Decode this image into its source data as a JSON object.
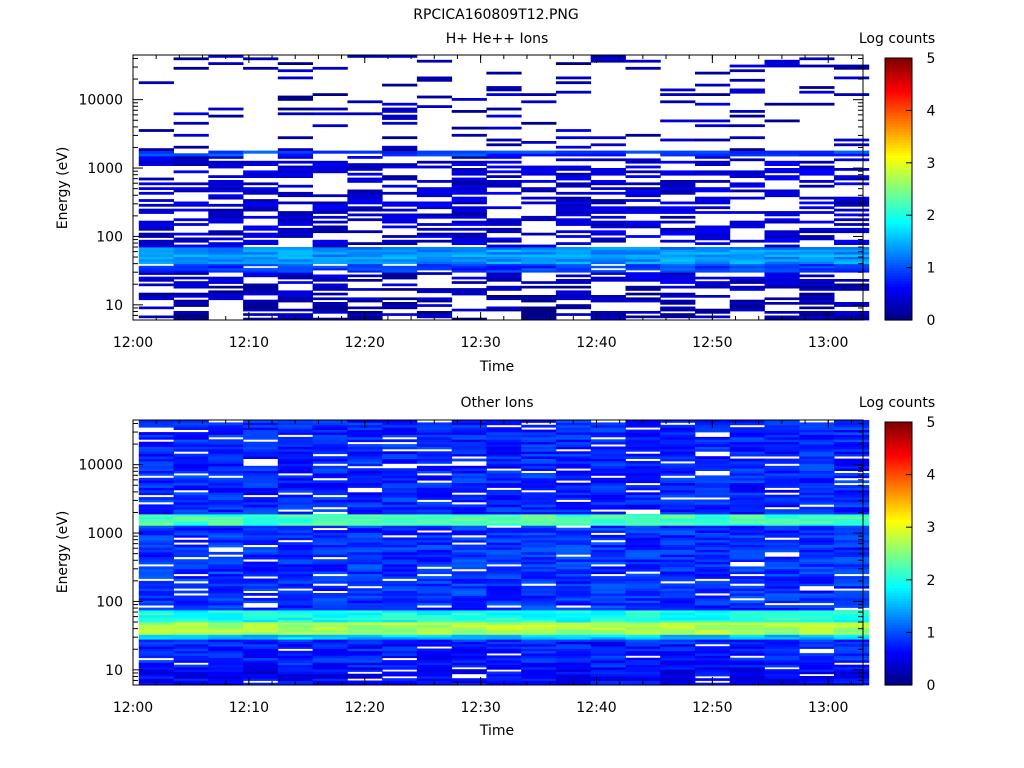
{
  "figure_title": "RPCICA160809T12.PNG",
  "chart_data": [
    {
      "type": "heatmap",
      "title": "H+ He++ Ions",
      "xlabel": "Time",
      "ylabel": "Energy (eV)",
      "x_ticks": [
        "12:00",
        "12:10",
        "12:20",
        "12:30",
        "12:40",
        "12:50",
        "13:00"
      ],
      "xlim": [
        "12:00",
        "13:03"
      ],
      "y_scale": "log",
      "ylim": [
        6,
        45000
      ],
      "y_ticks": [
        "10",
        "100",
        "1000",
        "10000"
      ],
      "colorbar": {
        "label": "Log counts",
        "range": [
          0,
          5
        ],
        "ticks": [
          "0",
          "1",
          "2",
          "3",
          "4",
          "5"
        ]
      },
      "time_bins": [
        "12:02",
        "12:05",
        "12:08",
        "12:11",
        "12:14",
        "12:17",
        "12:20",
        "12:23",
        "12:26",
        "12:29",
        "12:32",
        "12:35",
        "12:38",
        "12:41",
        "12:44",
        "12:47",
        "12:50",
        "12:53",
        "12:56",
        "12:59",
        "13:02"
      ],
      "bands": [
        {
          "energy_range": [
            6,
            11
          ],
          "log_counts": 0.2,
          "fill": 0.55
        },
        {
          "energy_range": [
            11,
            19
          ],
          "log_counts": 0.25,
          "fill": 0.5
        },
        {
          "energy_range": [
            19,
            30
          ],
          "log_counts": 0.35,
          "fill": 0.55
        },
        {
          "energy_range": [
            30,
            40
          ],
          "log_counts": 0.9,
          "fill": 0.9
        },
        {
          "energy_range": [
            40,
            70
          ],
          "log_counts": 1.35,
          "fill": 1.0
        },
        {
          "energy_range": [
            70,
            1500
          ],
          "log_counts": 0.4,
          "fill": 0.5
        },
        {
          "energy_range": [
            1500,
            1800
          ],
          "log_counts": 0.9,
          "fill": 0.9
        },
        {
          "energy_range": [
            1800,
            45000
          ],
          "log_counts": 0.25,
          "fill": 0.12
        }
      ]
    },
    {
      "type": "heatmap",
      "title": "Other Ions",
      "xlabel": "Time",
      "ylabel": "Energy (eV)",
      "x_ticks": [
        "12:00",
        "12:10",
        "12:20",
        "12:30",
        "12:40",
        "12:50",
        "13:00"
      ],
      "xlim": [
        "12:00",
        "13:03"
      ],
      "y_scale": "log",
      "ylim": [
        6,
        45000
      ],
      "y_ticks": [
        "10",
        "100",
        "1000",
        "10000"
      ],
      "colorbar": {
        "label": "Log counts",
        "range": [
          0,
          5
        ],
        "ticks": [
          "0",
          "1",
          "2",
          "3",
          "4",
          "5"
        ]
      },
      "time_bins": [
        "12:02",
        "12:05",
        "12:08",
        "12:11",
        "12:14",
        "12:17",
        "12:20",
        "12:23",
        "12:26",
        "12:29",
        "12:32",
        "12:35",
        "12:38",
        "12:41",
        "12:44",
        "12:47",
        "12:50",
        "12:53",
        "12:56",
        "12:59",
        "13:02"
      ],
      "bands": [
        {
          "energy_range": [
            6,
            11
          ],
          "log_counts": 0.6,
          "fill": 0.9
        },
        {
          "energy_range": [
            11,
            28
          ],
          "log_counts": 0.75,
          "fill": 0.95
        },
        {
          "energy_range": [
            28,
            33
          ],
          "log_counts": 1.6,
          "fill": 1.0
        },
        {
          "energy_range": [
            33,
            50
          ],
          "log_counts": 2.7,
          "fill": 1.0
        },
        {
          "energy_range": [
            50,
            75
          ],
          "log_counts": 2.0,
          "fill": 1.0
        },
        {
          "energy_range": [
            75,
            1300
          ],
          "log_counts": 0.85,
          "fill": 0.9
        },
        {
          "energy_range": [
            1300,
            1900
          ],
          "log_counts": 2.2,
          "fill": 1.0
        },
        {
          "energy_range": [
            1900,
            45000
          ],
          "log_counts": 0.8,
          "fill": 0.88
        }
      ]
    }
  ]
}
